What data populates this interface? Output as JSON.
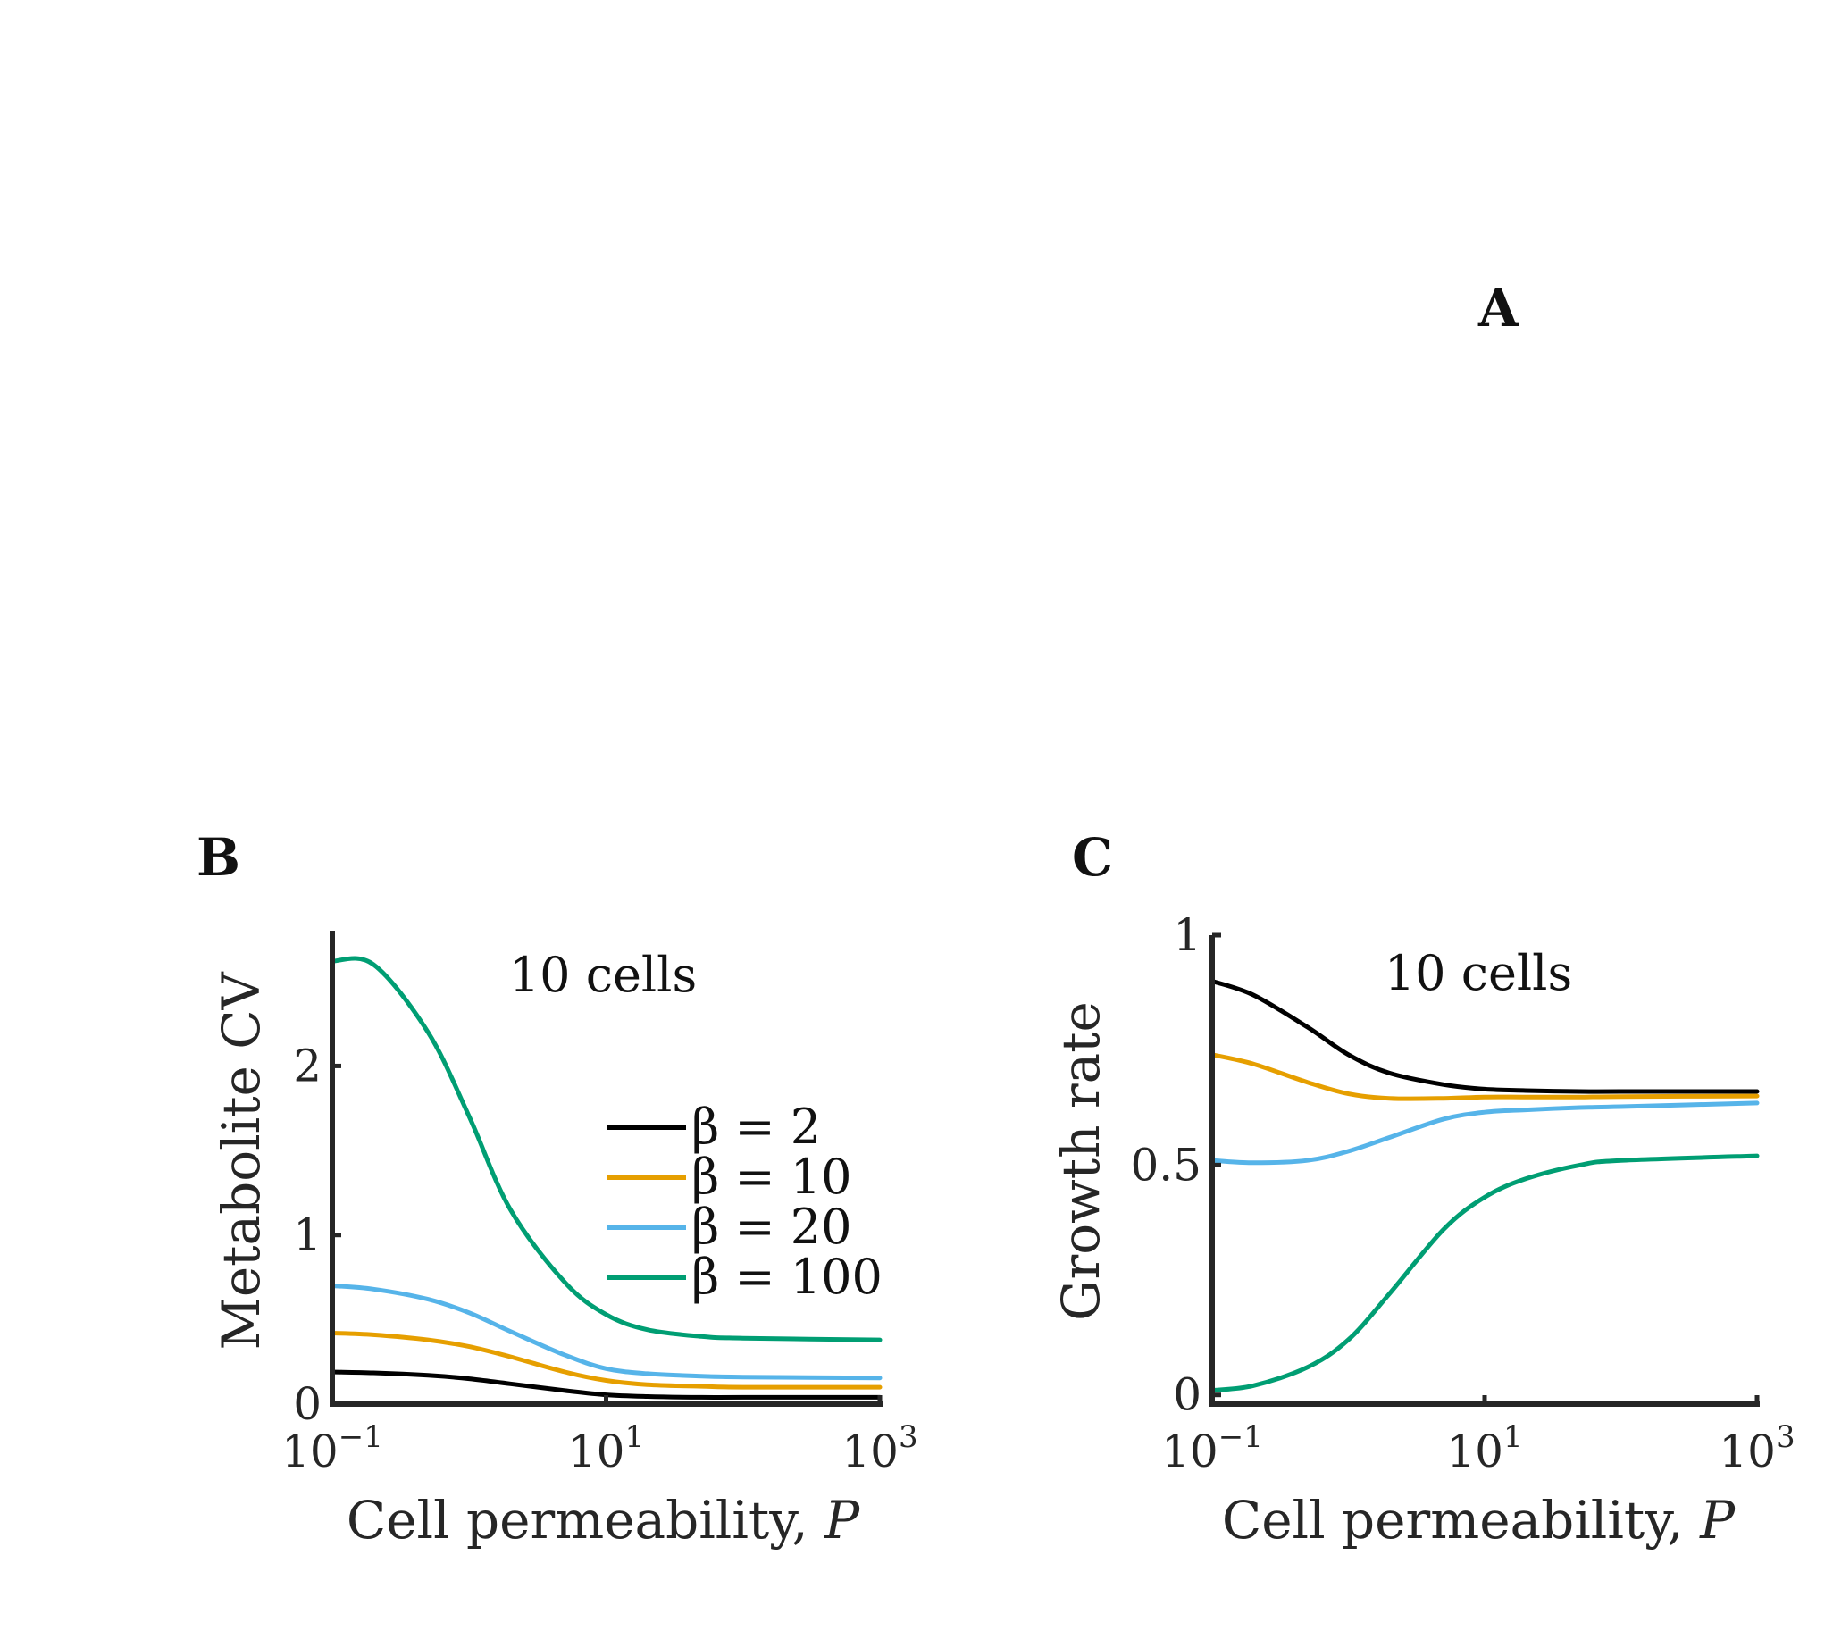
{
  "panels": {
    "a": {
      "letter": "A"
    },
    "b": {
      "letter": "B"
    },
    "c": {
      "letter": "C"
    }
  },
  "colors": {
    "beta_2": "#000000",
    "beta_10": "#E69F00",
    "beta_20": "#56B4E9",
    "beta_100": "#009E73"
  },
  "chart_data": [
    {
      "panel": "B",
      "type": "line",
      "annotation": "10 cells",
      "xlabel": "Cell permeability, P",
      "xlabel_main": "Cell permeability, ",
      "xlabel_var": "P",
      "ylabel": "Metabolite CV",
      "xscale": "log",
      "xlim": [
        0.1,
        1000
      ],
      "ylim": [
        0,
        2.8
      ],
      "xticks": [
        {
          "value": 0.1,
          "base": "10",
          "exp": "−1"
        },
        {
          "value": 10,
          "base": "10",
          "exp": "1"
        },
        {
          "value": 1000,
          "base": "10",
          "exp": "3"
        }
      ],
      "yticks": [
        {
          "value": 0,
          "label": "0"
        },
        {
          "value": 1,
          "label": "1"
        },
        {
          "value": 2,
          "label": "2"
        }
      ],
      "legend_position": "center-right",
      "legend": [
        {
          "label": "β = 2",
          "color_key": "beta_2"
        },
        {
          "label": "β = 10",
          "color_key": "beta_10"
        },
        {
          "label": "β = 20",
          "color_key": "beta_20"
        },
        {
          "label": "β = 100",
          "color_key": "beta_100"
        }
      ],
      "x": [
        0.1,
        0.2,
        0.5,
        1,
        2,
        5,
        10,
        20,
        50,
        100,
        1000
      ],
      "series": [
        {
          "name": "β = 2",
          "color_key": "beta_2",
          "values": [
            0.19,
            0.185,
            0.17,
            0.15,
            0.12,
            0.08,
            0.055,
            0.045,
            0.04,
            0.04,
            0.04
          ]
        },
        {
          "name": "β = 10",
          "color_key": "beta_10",
          "values": [
            0.42,
            0.41,
            0.38,
            0.34,
            0.28,
            0.19,
            0.14,
            0.115,
            0.105,
            0.1,
            0.1
          ]
        },
        {
          "name": "β = 20",
          "color_key": "beta_20",
          "values": [
            0.7,
            0.68,
            0.62,
            0.54,
            0.43,
            0.29,
            0.21,
            0.18,
            0.165,
            0.16,
            0.155
          ]
        },
        {
          "name": "β = 100",
          "color_key": "beta_100",
          "values": [
            2.62,
            2.6,
            2.2,
            1.7,
            1.15,
            0.72,
            0.53,
            0.44,
            0.4,
            0.39,
            0.38
          ]
        }
      ]
    },
    {
      "panel": "C",
      "type": "line",
      "annotation": "10 cells",
      "xlabel": "Cell permeability, P",
      "xlabel_main": "Cell permeability, ",
      "xlabel_var": "P",
      "ylabel": "Growth rate",
      "xscale": "log",
      "xlim": [
        0.1,
        1000
      ],
      "ylim": [
        -0.02,
        1
      ],
      "xticks": [
        {
          "value": 0.1,
          "base": "10",
          "exp": "−1"
        },
        {
          "value": 10,
          "base": "10",
          "exp": "1"
        },
        {
          "value": 1000,
          "base": "10",
          "exp": "3"
        }
      ],
      "yticks": [
        {
          "value": 0,
          "label": "0"
        },
        {
          "value": 0.5,
          "label": "0.5"
        },
        {
          "value": 1,
          "label": "1"
        }
      ],
      "x": [
        0.1,
        0.2,
        0.5,
        1,
        2,
        5,
        10,
        20,
        50,
        100,
        1000
      ],
      "series": [
        {
          "name": "β = 2",
          "color_key": "beta_2",
          "values": [
            0.9,
            0.87,
            0.8,
            0.74,
            0.7,
            0.675,
            0.665,
            0.662,
            0.66,
            0.66,
            0.66
          ]
        },
        {
          "name": "β = 10",
          "color_key": "beta_10",
          "values": [
            0.74,
            0.72,
            0.68,
            0.655,
            0.645,
            0.645,
            0.648,
            0.648,
            0.648,
            0.649,
            0.65
          ]
        },
        {
          "name": "β = 20",
          "color_key": "beta_20",
          "values": [
            0.51,
            0.505,
            0.51,
            0.53,
            0.56,
            0.6,
            0.615,
            0.62,
            0.625,
            0.627,
            0.635
          ]
        },
        {
          "name": "β = 100",
          "color_key": "beta_100",
          "values": [
            0.01,
            0.02,
            0.06,
            0.12,
            0.22,
            0.36,
            0.43,
            0.47,
            0.5,
            0.51,
            0.52
          ]
        }
      ]
    }
  ]
}
